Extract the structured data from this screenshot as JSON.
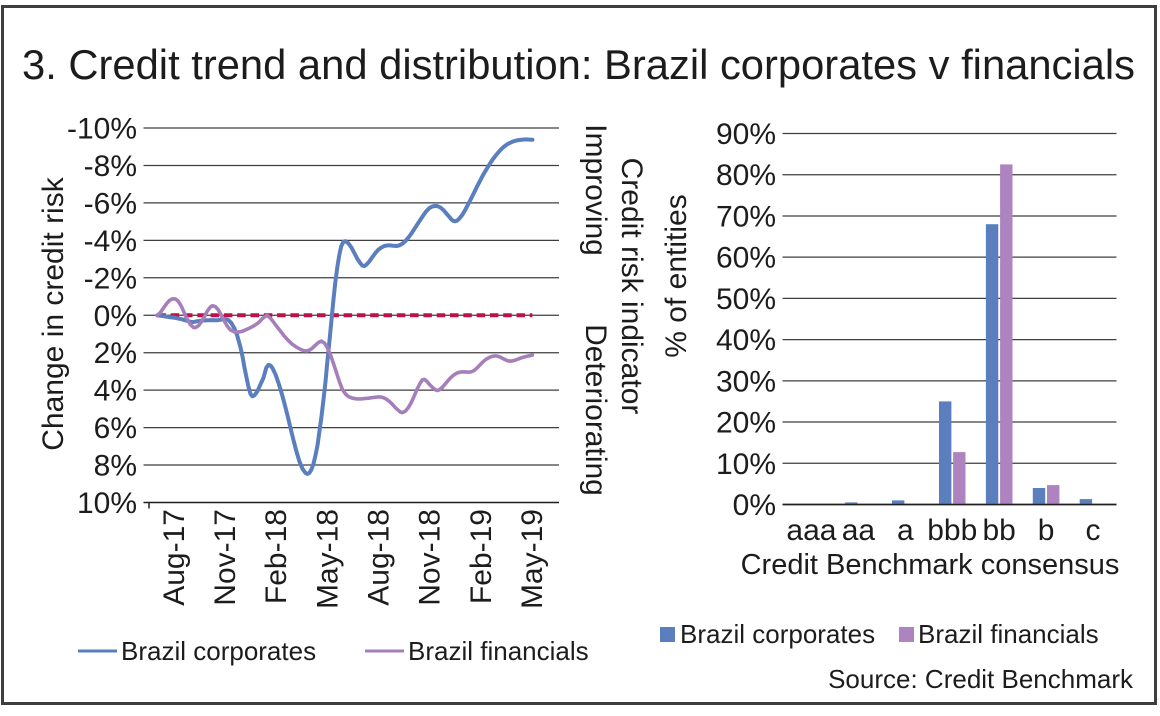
{
  "title": "3. Credit trend and distribution: Brazil corporates v financials",
  "source": "Source: Credit Benchmark",
  "colors": {
    "corporates": "#5b7ebf",
    "financials_line": "#a57fb9",
    "financials_bar": "#ad84bf",
    "zero_line": "#c01048",
    "gridline": "#3f3f3f",
    "axis_line": "#1f1f1f",
    "frame": "#3e3e3e",
    "text": "#1c1c1c"
  },
  "chart_data": [
    {
      "type": "line",
      "ylabel": "Change in credit risk",
      "right_axis_title": "Credit risk indicator",
      "right_axis_top_label": "Improving",
      "right_axis_bottom_label": "Deteriorating",
      "y_ticks": [
        "-10%",
        "-8%",
        "-6%",
        "-4%",
        "-2%",
        "0%",
        "2%",
        "4%",
        "6%",
        "8%",
        "10%"
      ],
      "y_tick_values": [
        -10,
        -8,
        -6,
        -4,
        -2,
        0,
        2,
        4,
        6,
        8,
        10
      ],
      "ylim": [
        -10,
        10
      ],
      "y_axis_inverted": true,
      "x_tick_labels": [
        "Aug-17",
        "Nov-17",
        "Feb-18",
        "May-18",
        "Aug-18",
        "Nov-18",
        "Feb-19",
        "May-19"
      ],
      "x_tick_month_index": [
        1,
        4,
        7,
        10,
        13,
        16,
        19,
        22
      ],
      "x_months_span": 22,
      "zero_line": {
        "value": 0,
        "style": "dashed"
      },
      "legend": [
        "Brazil corporates",
        "Brazil financials"
      ],
      "series": [
        {
          "name": "Brazil corporates",
          "points": [
            [
              0.0,
              0.0
            ],
            [
              0.35,
              0.05
            ],
            [
              0.7,
              0.1
            ],
            [
              1.06,
              0.14
            ],
            [
              1.41,
              0.21
            ],
            [
              1.76,
              0.3
            ],
            [
              2.05,
              0.37
            ],
            [
              2.35,
              0.32
            ],
            [
              2.7,
              0.28
            ],
            [
              3.11,
              0.26
            ],
            [
              3.52,
              0.27
            ],
            [
              3.93,
              0.2
            ],
            [
              4.17,
              0.26
            ],
            [
              4.34,
              0.42
            ],
            [
              4.52,
              0.7
            ],
            [
              4.69,
              1.1
            ],
            [
              4.87,
              1.7
            ],
            [
              4.99,
              2.2
            ],
            [
              5.1,
              2.75
            ],
            [
              5.22,
              3.3
            ],
            [
              5.34,
              3.8
            ],
            [
              5.46,
              4.2
            ],
            [
              5.57,
              4.33
            ],
            [
              5.69,
              4.28
            ],
            [
              5.87,
              4.05
            ],
            [
              6.04,
              3.7
            ],
            [
              6.22,
              3.35
            ],
            [
              6.39,
              2.8
            ],
            [
              6.51,
              2.65
            ],
            [
              6.63,
              2.68
            ],
            [
              6.75,
              2.82
            ],
            [
              6.92,
              3.15
            ],
            [
              7.1,
              3.6
            ],
            [
              7.27,
              4.1
            ],
            [
              7.45,
              4.7
            ],
            [
              7.63,
              5.35
            ],
            [
              7.8,
              6.0
            ],
            [
              7.98,
              6.65
            ],
            [
              8.15,
              7.25
            ],
            [
              8.33,
              7.8
            ],
            [
              8.51,
              8.2
            ],
            [
              8.68,
              8.42
            ],
            [
              8.8,
              8.47
            ],
            [
              8.92,
              8.42
            ],
            [
              9.03,
              8.25
            ],
            [
              9.15,
              7.95
            ],
            [
              9.27,
              7.5
            ],
            [
              9.39,
              6.95
            ],
            [
              9.5,
              6.25
            ],
            [
              9.62,
              5.45
            ],
            [
              9.74,
              4.55
            ],
            [
              9.86,
              3.55
            ],
            [
              9.97,
              2.5
            ],
            [
              10.09,
              1.4
            ],
            [
              10.21,
              0.3
            ],
            [
              10.32,
              -0.75
            ],
            [
              10.44,
              -1.75
            ],
            [
              10.56,
              -2.6
            ],
            [
              10.68,
              -3.25
            ],
            [
              10.79,
              -3.7
            ],
            [
              10.91,
              -3.92
            ],
            [
              11.03,
              -3.96
            ],
            [
              11.2,
              -3.85
            ],
            [
              11.38,
              -3.62
            ],
            [
              11.56,
              -3.32
            ],
            [
              11.73,
              -3.02
            ],
            [
              11.91,
              -2.78
            ],
            [
              12.02,
              -2.65
            ],
            [
              12.14,
              -2.63
            ],
            [
              12.26,
              -2.7
            ],
            [
              12.44,
              -2.88
            ],
            [
              12.61,
              -3.1
            ],
            [
              12.79,
              -3.32
            ],
            [
              12.96,
              -3.5
            ],
            [
              13.14,
              -3.62
            ],
            [
              13.31,
              -3.7
            ],
            [
              13.49,
              -3.73
            ],
            [
              13.67,
              -3.73
            ],
            [
              13.84,
              -3.71
            ],
            [
              14.02,
              -3.7
            ],
            [
              14.19,
              -3.73
            ],
            [
              14.37,
              -3.82
            ],
            [
              14.55,
              -3.96
            ],
            [
              14.72,
              -4.14
            ],
            [
              14.9,
              -4.36
            ],
            [
              15.07,
              -4.6
            ],
            [
              15.25,
              -4.85
            ],
            [
              15.43,
              -5.1
            ],
            [
              15.6,
              -5.34
            ],
            [
              15.78,
              -5.56
            ],
            [
              15.95,
              -5.72
            ],
            [
              16.13,
              -5.81
            ],
            [
              16.31,
              -5.84
            ],
            [
              16.42,
              -5.83
            ],
            [
              16.6,
              -5.76
            ],
            [
              16.78,
              -5.62
            ],
            [
              16.95,
              -5.44
            ],
            [
              17.13,
              -5.25
            ],
            [
              17.25,
              -5.12
            ],
            [
              17.36,
              -5.04
            ],
            [
              17.48,
              -5.02
            ],
            [
              17.6,
              -5.06
            ],
            [
              17.71,
              -5.16
            ],
            [
              17.89,
              -5.36
            ],
            [
              18.07,
              -5.64
            ],
            [
              18.24,
              -5.94
            ],
            [
              18.42,
              -6.26
            ],
            [
              18.6,
              -6.58
            ],
            [
              18.77,
              -6.9
            ],
            [
              18.95,
              -7.21
            ],
            [
              19.12,
              -7.51
            ],
            [
              19.3,
              -7.79
            ],
            [
              19.48,
              -8.05
            ],
            [
              19.65,
              -8.29
            ],
            [
              19.83,
              -8.51
            ],
            [
              20.01,
              -8.71
            ],
            [
              20.18,
              -8.88
            ],
            [
              20.36,
              -9.02
            ],
            [
              20.53,
              -9.13
            ],
            [
              20.71,
              -9.22
            ],
            [
              20.89,
              -9.29
            ],
            [
              21.06,
              -9.33
            ],
            [
              21.24,
              -9.36
            ],
            [
              21.42,
              -9.38
            ],
            [
              21.65,
              -9.39
            ],
            [
              21.83,
              -9.38
            ],
            [
              22.0,
              -9.37
            ]
          ]
        },
        {
          "name": "Brazil financials",
          "points": [
            [
              0.0,
              0.0
            ],
            [
              0.18,
              -0.15
            ],
            [
              0.35,
              -0.38
            ],
            [
              0.53,
              -0.6
            ],
            [
              0.7,
              -0.78
            ],
            [
              0.88,
              -0.88
            ],
            [
              1.06,
              -0.87
            ],
            [
              1.23,
              -0.74
            ],
            [
              1.41,
              -0.48
            ],
            [
              1.58,
              -0.12
            ],
            [
              1.76,
              0.25
            ],
            [
              1.94,
              0.5
            ],
            [
              2.11,
              0.65
            ],
            [
              2.23,
              0.66
            ],
            [
              2.41,
              0.56
            ],
            [
              2.58,
              0.35
            ],
            [
              2.76,
              0.08
            ],
            [
              2.93,
              -0.22
            ],
            [
              3.11,
              -0.44
            ],
            [
              3.23,
              -0.51
            ],
            [
              3.4,
              -0.46
            ],
            [
              3.58,
              -0.28
            ],
            [
              3.75,
              0.0
            ],
            [
              3.93,
              0.32
            ],
            [
              4.11,
              0.6
            ],
            [
              4.28,
              0.78
            ],
            [
              4.52,
              0.89
            ],
            [
              4.75,
              0.9
            ],
            [
              4.99,
              0.85
            ],
            [
              5.22,
              0.76
            ],
            [
              5.46,
              0.66
            ],
            [
              5.69,
              0.55
            ],
            [
              5.93,
              0.4
            ],
            [
              6.16,
              0.18
            ],
            [
              6.34,
              0.05
            ],
            [
              6.45,
              0.02
            ],
            [
              6.63,
              0.15
            ],
            [
              6.8,
              0.35
            ],
            [
              6.98,
              0.57
            ],
            [
              7.22,
              0.85
            ],
            [
              7.45,
              1.12
            ],
            [
              7.68,
              1.35
            ],
            [
              7.92,
              1.55
            ],
            [
              8.15,
              1.7
            ],
            [
              8.39,
              1.82
            ],
            [
              8.57,
              1.89
            ],
            [
              8.74,
              1.91
            ],
            [
              8.92,
              1.86
            ],
            [
              9.09,
              1.76
            ],
            [
              9.27,
              1.6
            ],
            [
              9.45,
              1.45
            ],
            [
              9.62,
              1.38
            ],
            [
              9.8,
              1.48
            ],
            [
              9.97,
              1.72
            ],
            [
              10.15,
              2.1
            ],
            [
              10.32,
              2.55
            ],
            [
              10.5,
              3.05
            ],
            [
              10.68,
              3.55
            ],
            [
              10.85,
              3.95
            ],
            [
              11.03,
              4.2
            ],
            [
              11.2,
              4.34
            ],
            [
              11.44,
              4.43
            ],
            [
              11.67,
              4.46
            ],
            [
              11.91,
              4.47
            ],
            [
              12.14,
              4.45
            ],
            [
              12.38,
              4.43
            ],
            [
              12.61,
              4.4
            ],
            [
              12.85,
              4.37
            ],
            [
              13.08,
              4.36
            ],
            [
              13.26,
              4.4
            ],
            [
              13.43,
              4.48
            ],
            [
              13.61,
              4.6
            ],
            [
              13.79,
              4.76
            ],
            [
              13.96,
              4.93
            ],
            [
              14.14,
              5.08
            ],
            [
              14.26,
              5.17
            ],
            [
              14.37,
              5.2
            ],
            [
              14.55,
              5.12
            ],
            [
              14.72,
              4.93
            ],
            [
              14.9,
              4.65
            ],
            [
              15.07,
              4.3
            ],
            [
              15.25,
              3.92
            ],
            [
              15.43,
              3.6
            ],
            [
              15.54,
              3.45
            ],
            [
              15.66,
              3.42
            ],
            [
              15.78,
              3.5
            ],
            [
              15.95,
              3.68
            ],
            [
              16.13,
              3.85
            ],
            [
              16.31,
              3.98
            ],
            [
              16.42,
              4.02
            ],
            [
              16.54,
              3.98
            ],
            [
              16.72,
              3.85
            ],
            [
              16.89,
              3.66
            ],
            [
              17.07,
              3.47
            ],
            [
              17.25,
              3.3
            ],
            [
              17.42,
              3.17
            ],
            [
              17.6,
              3.08
            ],
            [
              17.78,
              3.03
            ],
            [
              18.01,
              3.02
            ],
            [
              18.24,
              3.04
            ],
            [
              18.42,
              3.02
            ],
            [
              18.6,
              2.94
            ],
            [
              18.77,
              2.8
            ],
            [
              18.95,
              2.63
            ],
            [
              19.12,
              2.47
            ],
            [
              19.3,
              2.34
            ],
            [
              19.48,
              2.25
            ],
            [
              19.65,
              2.19
            ],
            [
              19.83,
              2.17
            ],
            [
              20.01,
              2.2
            ],
            [
              20.18,
              2.27
            ],
            [
              20.36,
              2.35
            ],
            [
              20.53,
              2.42
            ],
            [
              20.65,
              2.45
            ],
            [
              20.77,
              2.45
            ],
            [
              20.94,
              2.41
            ],
            [
              21.12,
              2.35
            ],
            [
              21.3,
              2.29
            ],
            [
              21.47,
              2.24
            ],
            [
              21.65,
              2.2
            ],
            [
              21.83,
              2.16
            ],
            [
              22.0,
              2.13
            ]
          ]
        }
      ]
    },
    {
      "type": "bar",
      "categories": [
        "aaa",
        "aa",
        "a",
        "bbb",
        "bb",
        "b",
        "c"
      ],
      "series": [
        {
          "name": "Brazil corporates",
          "values": [
            0,
            0.5,
            1.0,
            25,
            68,
            4,
            1.3
          ]
        },
        {
          "name": "Brazil financials",
          "values": [
            0,
            0,
            0,
            12.7,
            82.5,
            4.7,
            0
          ]
        }
      ],
      "ylabel": "% of entities",
      "xlabel": "Credit Benchmark consensus",
      "y_ticks": [
        "0%",
        "10%",
        "20%",
        "30%",
        "40%",
        "50%",
        "60%",
        "70%",
        "80%",
        "90%"
      ],
      "y_tick_values": [
        0,
        10,
        20,
        30,
        40,
        50,
        60,
        70,
        80,
        90
      ],
      "ylim": [
        0,
        90
      ],
      "legend": [
        "Brazil corporates",
        "Brazil financials"
      ]
    }
  ]
}
